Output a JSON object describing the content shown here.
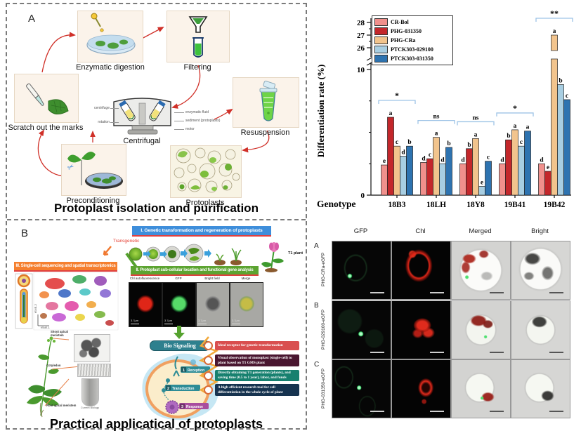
{
  "panel_a": {
    "label": "A",
    "title": "Protoplast isolation and purification",
    "steps": [
      "Scratch out the marks",
      "Enzymatic digestion",
      "Filtering",
      "Resuspension",
      "Protoplasts",
      "Preconditioning"
    ],
    "centrifuge": {
      "caption": "Centrifugal",
      "label_centrifuge": "centrifuge",
      "label_rotation": "rotation",
      "label_enzymatic_fluid": "enzymatic fluid",
      "label_sediment": "sediment (protoplasts)",
      "label_motor": "motor"
    }
  },
  "panel_b": {
    "label": "B",
    "title": "Practical applicatical of protoplasts",
    "banner_i": "I. Genetic transformation and regeneration of protoplasts",
    "banner_ii": "II. Protoplast sub-cellular location and functional gene analysis",
    "banner_iii": "III. Single-cell sequencing and spatial transcriptomics",
    "transgenetic": "Transgenetic",
    "t1_plant": "T1 plant",
    "tsne_x": "tSNE-1",
    "tsne_y": "tSNE-2",
    "micro_labels": [
      "Chl autofluorescence",
      "GFP",
      "Bright field",
      "Merge"
    ],
    "micro_scale": "3.7μm",
    "bio_signaling": "Bio Signaling",
    "signal_steps": [
      {
        "num": "1",
        "label": "Reception"
      },
      {
        "num": "2",
        "label": "Transduction"
      },
      {
        "num": "3",
        "label": "Response"
      }
    ],
    "benefits": [
      {
        "text": "Ideal receptor for genetic transformation",
        "color": "#d94f4f"
      },
      {
        "text": "Visual observation of monoplast (single-cell) to plant based on T1 GMS plant",
        "color": "#4a1630"
      },
      {
        "text": "Directly obtaining T1 generation (plants), and saving time (0.5 to 1 year), labor, and funds",
        "color": "#17806f"
      },
      {
        "text": "A high efficient research tool for cell differentiation in the whole cycle of plant",
        "color": "#16334f"
      }
    ],
    "plant_labels": {
      "shoot": "Shoot apical meristem",
      "cotyledon": "Cotyledon",
      "root": "Root apical meristem",
      "caption": "Current Biology"
    }
  },
  "chart_data": {
    "type": "bar",
    "title": "",
    "xlabel": "Genotype",
    "ylabel": "Differentiation rate (%)",
    "categories": [
      "18B3",
      "18LH",
      "18Y8",
      "19B41",
      "19B42"
    ],
    "y_ticks_lower": [
      0,
      10
    ],
    "y_ticks_upper": [
      26,
      27,
      28
    ],
    "axis_break_between": [
      10,
      26
    ],
    "legend_position": "top-left",
    "series": [
      {
        "name": "CR-Bol",
        "color": "#f0908c",
        "values": [
          2.4,
          2.6,
          2.5,
          2.5,
          2.5
        ]
      },
      {
        "name": "PHG-031350",
        "color": "#c3272b",
        "values": [
          6.2,
          2.9,
          3.7,
          4.4,
          1.9
        ]
      },
      {
        "name": "PHG-CRa",
        "color": "#f2c48d",
        "values": [
          3.9,
          4.6,
          4.5,
          5.2,
          27.0
        ]
      },
      {
        "name": "PTCK303-029100",
        "color": "#a8cee2",
        "values": [
          3.1,
          2.5,
          0.7,
          3.9,
          8.8
        ]
      },
      {
        "name": "PTCK303-031350",
        "color": "#2e73b0",
        "values": [
          3.9,
          3.8,
          2.7,
          5.1,
          7.6
        ]
      }
    ],
    "letters": [
      [
        "e",
        "a",
        "c",
        "d",
        "b"
      ],
      [
        "d",
        "c",
        "a",
        "d",
        "b"
      ],
      [
        "d",
        "b",
        "a",
        "e",
        "c"
      ],
      [
        "d",
        "b",
        "a",
        "c",
        "a"
      ],
      [
        "d",
        "e",
        "a",
        "b",
        "c"
      ]
    ],
    "significance": [
      "*",
      "ns",
      "ns",
      "*",
      "**"
    ],
    "bracket_color": "#9dc3e6"
  },
  "microscopy": {
    "columns": [
      "GFP",
      "Chl",
      "Merged",
      "Bright"
    ],
    "rows": [
      {
        "label": "A",
        "name": "PHG-CRa-eGFP"
      },
      {
        "label": "B",
        "name": "PHG-029100-eGFP"
      },
      {
        "label": "C",
        "name": "PHG-031350-eGFP"
      }
    ]
  }
}
